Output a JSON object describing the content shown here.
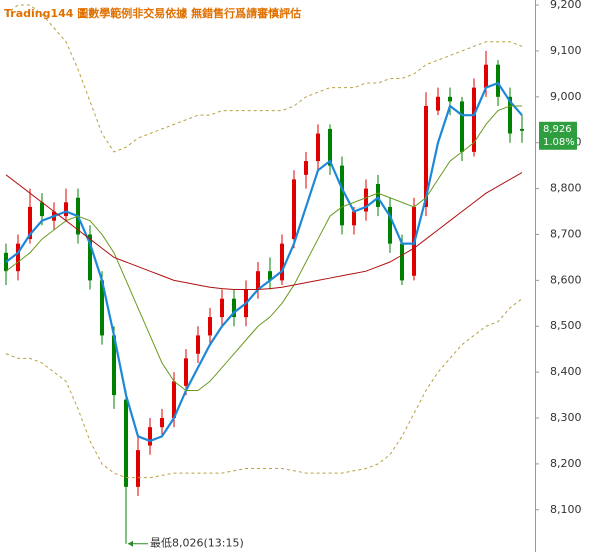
{
  "chart_data": {
    "type": "candlestick",
    "title": "Trading144 圖數學範例非交易依據 無錯售行爲請審慎評估",
    "categories": [
      null,
      null,
      null,
      null,
      null,
      null,
      null,
      null,
      null,
      null,
      null,
      null,
      null,
      null,
      null,
      null,
      null,
      null,
      null,
      null,
      null,
      null,
      null,
      null,
      null,
      null,
      null,
      null,
      null,
      null,
      null,
      null,
      null,
      null,
      null,
      null,
      null,
      null,
      null,
      null,
      null,
      null,
      null,
      null
    ],
    "open": [
      8660,
      8620,
      8690,
      8770,
      8730,
      8740,
      8780,
      8700,
      8600,
      8480,
      8340,
      8150,
      8240,
      8280,
      8300,
      8370,
      8440,
      8480,
      8520,
      8560,
      8520,
      8580,
      8620,
      8600,
      8690,
      8830,
      8860,
      8930,
      8850,
      8720,
      8750,
      8810,
      8760,
      8680,
      8610,
      8760,
      8970,
      9000,
      8990,
      8880,
      9020,
      9070,
      9000,
      8930
    ],
    "high": [
      8680,
      8700,
      8800,
      8790,
      8770,
      8800,
      8800,
      8720,
      8620,
      8500,
      8360,
      8260,
      8300,
      8320,
      8400,
      8450,
      8500,
      8540,
      8580,
      8580,
      8600,
      8640,
      8650,
      8700,
      8840,
      8880,
      8940,
      8940,
      8870,
      8760,
      8820,
      8830,
      8780,
      8700,
      8780,
      9010,
      9020,
      9020,
      9000,
      9040,
      9100,
      9080,
      9020,
      8960
    ],
    "low": [
      8590,
      8600,
      8680,
      8720,
      8710,
      8730,
      8680,
      8580,
      8460,
      8320,
      8026,
      8130,
      8220,
      8260,
      8280,
      8350,
      8420,
      8460,
      8500,
      8500,
      8500,
      8560,
      8580,
      8590,
      8670,
      8800,
      8840,
      8830,
      8700,
      8700,
      8730,
      8740,
      8660,
      8590,
      8600,
      8740,
      8960,
      8960,
      8860,
      8870,
      9000,
      8980,
      8900,
      8900
    ],
    "close": [
      8620,
      8680,
      8760,
      8740,
      8750,
      8770,
      8700,
      8600,
      8480,
      8350,
      8150,
      8230,
      8280,
      8300,
      8380,
      8430,
      8480,
      8520,
      8560,
      8520,
      8580,
      8620,
      8600,
      8680,
      8820,
      8860,
      8920,
      8850,
      8720,
      8750,
      8800,
      8760,
      8680,
      8600,
      8760,
      8980,
      9000,
      8990,
      8880,
      9020,
      9070,
      9000,
      8920,
      8926
    ],
    "up_color": "#e00000",
    "down_color": "#008000",
    "series": [
      {
        "color": "#1e88d8",
        "width": 2.2,
        "dash": false,
        "values": [
          8640,
          8660,
          8700,
          8730,
          8740,
          8750,
          8740,
          8680,
          8600,
          8480,
          8350,
          8260,
          8250,
          8260,
          8300,
          8360,
          8410,
          8460,
          8500,
          8530,
          8550,
          8580,
          8600,
          8620,
          8680,
          8760,
          8840,
          8860,
          8800,
          8750,
          8760,
          8780,
          8740,
          8680,
          8680,
          8780,
          8900,
          8980,
          8960,
          8960,
          9020,
          9030,
          8990,
          8960
        ]
      },
      {
        "color": "#6a9a20",
        "width": 1,
        "dash": false,
        "values": [
          8620,
          8640,
          8660,
          8690,
          8710,
          8730,
          8740,
          8730,
          8700,
          8660,
          8600,
          8540,
          8480,
          8420,
          8380,
          8360,
          8360,
          8380,
          8410,
          8440,
          8470,
          8500,
          8520,
          8550,
          8590,
          8640,
          8690,
          8740,
          8760,
          8770,
          8780,
          8790,
          8780,
          8770,
          8760,
          8780,
          8820,
          8860,
          8880,
          8900,
          8940,
          8970,
          8980,
          8980
        ]
      },
      {
        "color": "#b01010",
        "width": 1,
        "dash": false,
        "values": [
          8830,
          8810,
          8790,
          8770,
          8750,
          8730,
          8710,
          8690,
          8670,
          8650,
          8640,
          8630,
          8620,
          8610,
          8600,
          8595,
          8590,
          8585,
          8582,
          8580,
          8580,
          8580,
          8582,
          8585,
          8590,
          8595,
          8600,
          8605,
          8610,
          8615,
          8620,
          8630,
          8640,
          8655,
          8670,
          8690,
          8710,
          8730,
          8750,
          8770,
          8790,
          8805,
          8820,
          8835
        ]
      },
      {
        "color": "#b8a040",
        "width": 1,
        "dash": true,
        "values": [
          9180,
          9200,
          9200,
          9180,
          9150,
          9120,
          9060,
          8990,
          8920,
          8880,
          8890,
          8910,
          8920,
          8930,
          8940,
          8950,
          8960,
          8960,
          8970,
          8970,
          8970,
          8970,
          8970,
          8970,
          8980,
          9000,
          9010,
          9020,
          9020,
          9020,
          9030,
          9030,
          9040,
          9040,
          9050,
          9070,
          9080,
          9090,
          9100,
          9110,
          9120,
          9120,
          9120,
          9110
        ]
      },
      {
        "color": "#b8a040",
        "width": 1,
        "dash": true,
        "values": [
          8440,
          8430,
          8430,
          8420,
          8400,
          8380,
          8320,
          8250,
          8200,
          8180,
          8170,
          8170,
          8170,
          8175,
          8180,
          8180,
          8180,
          8180,
          8180,
          8185,
          8190,
          8190,
          8190,
          8190,
          8185,
          8180,
          8180,
          8180,
          8180,
          8185,
          8190,
          8200,
          8220,
          8260,
          8310,
          8360,
          8400,
          8430,
          8460,
          8480,
          8500,
          8510,
          8540,
          8560
        ]
      }
    ],
    "ylim": [
      8008,
      9211
    ],
    "yticks": [
      {
        "value": 8100,
        "label": "8,100"
      },
      {
        "value": 8200,
        "label": "8,200"
      },
      {
        "value": 8300,
        "label": "8,300"
      },
      {
        "value": 8400,
        "label": "8,400"
      },
      {
        "value": 8500,
        "label": "8,500"
      },
      {
        "value": 8600,
        "label": "8,600"
      },
      {
        "value": 8700,
        "label": "8,700"
      },
      {
        "value": 8800,
        "label": "8,800"
      },
      {
        "value": 8900,
        "label": "8,900"
      },
      {
        "value": 9000,
        "label": "9,000"
      },
      {
        "value": 9100,
        "label": "9,100"
      },
      {
        "value": 9200,
        "label": "9,200"
      }
    ],
    "last_price": {
      "value": 8926,
      "label": "8,926"
    },
    "change": {
      "value": 1.08,
      "label": "1.08%"
    },
    "low_annotation": "最低8,026(13:15)"
  }
}
